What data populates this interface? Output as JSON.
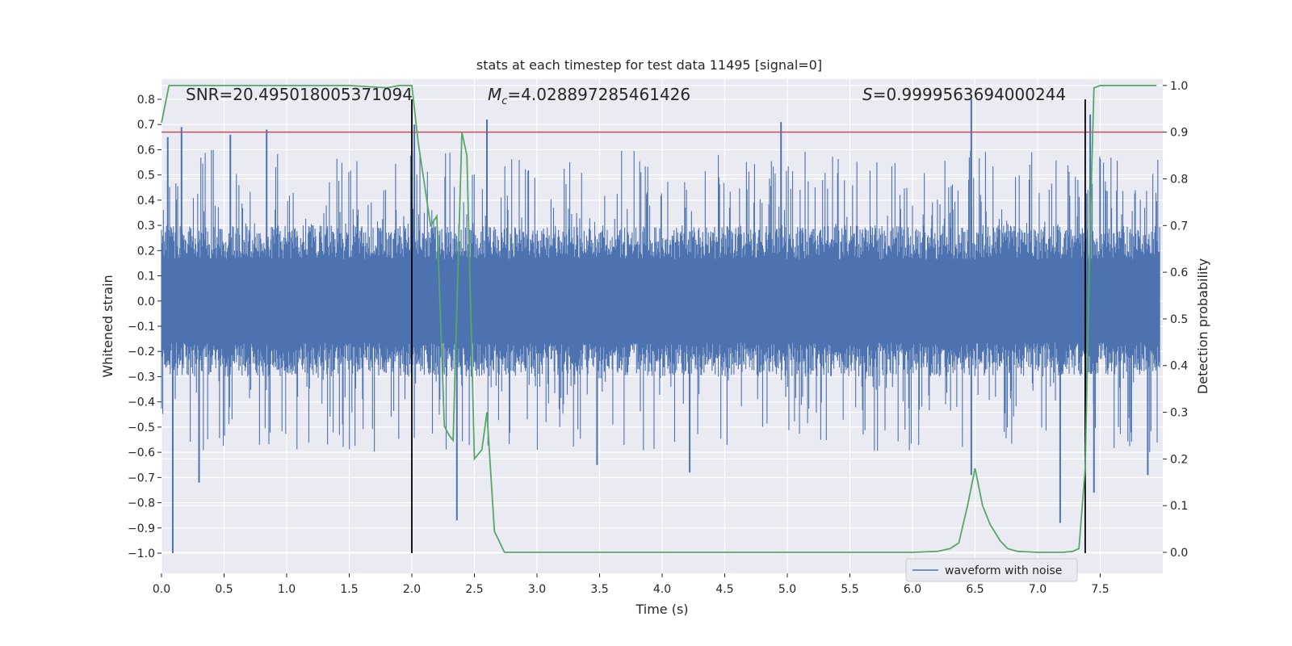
{
  "chart_data": {
    "type": "line",
    "title": "stats at each timestep for test data 11495 [signal=0]",
    "xlabel": "Time (s)",
    "ylabel": "Whitened strain",
    "y2label": "Detection probability",
    "xlim": [
      0.0,
      8.0
    ],
    "ylim": [
      -1.08,
      0.88
    ],
    "y2lim": [
      -0.045,
      1.0136
    ],
    "xticks": [
      "0.0",
      "0.5",
      "1.0",
      "1.5",
      "2.0",
      "2.5",
      "3.0",
      "3.5",
      "4.0",
      "4.5",
      "5.0",
      "5.5",
      "6.0",
      "6.5",
      "7.0",
      "7.5"
    ],
    "yticks": [
      "0.8",
      "0.7",
      "0.6",
      "0.5",
      "0.4",
      "0.3",
      "0.2",
      "0.1",
      "0.0",
      "−0.1",
      "−0.2",
      "−0.3",
      "−0.4",
      "−0.5",
      "−0.6",
      "−0.7",
      "−0.8",
      "−0.9",
      "−1.0"
    ],
    "y2ticks": [
      "1.0",
      "0.9",
      "0.8",
      "0.7",
      "0.6",
      "0.5",
      "0.4",
      "0.3",
      "0.2",
      "0.1",
      "0.0"
    ],
    "annotations": {
      "snr": "SNR=20.495018005371094",
      "mc_symbol": "M",
      "mc_sub": "c",
      "mc_value": "=4.028897285461426",
      "s_symbol": "S",
      "s_value": "=0.9999563694000244"
    },
    "legend": {
      "label": "waveform with noise",
      "location": "lower-right"
    },
    "colors": {
      "waveform": "#4c72b0",
      "probability": "#55a868",
      "threshold": "#c44e52",
      "marker": "#000000",
      "plot_bg": "#eaeaf2",
      "grid": "#ffffff"
    },
    "threshold_line": 0.9,
    "vertical_markers": [
      2.0,
      7.38
    ],
    "waveform_envelope": {
      "typical_max": 0.3,
      "typical_min": -0.3,
      "spikes": [
        {
          "x": 0.05,
          "y": 0.65
        },
        {
          "x": 0.09,
          "y": -1.0
        },
        {
          "x": 0.16,
          "y": 0.69
        },
        {
          "x": 0.3,
          "y": -0.72
        },
        {
          "x": 0.55,
          "y": 0.66
        },
        {
          "x": 0.84,
          "y": 0.68
        },
        {
          "x": 2.02,
          "y": 0.7
        },
        {
          "x": 2.36,
          "y": -0.87
        },
        {
          "x": 2.6,
          "y": 0.72
        },
        {
          "x": 3.48,
          "y": -0.65
        },
        {
          "x": 4.22,
          "y": -0.68
        },
        {
          "x": 4.95,
          "y": 0.71
        },
        {
          "x": 6.47,
          "y": 0.8
        },
        {
          "x": 6.47,
          "y": -0.69
        },
        {
          "x": 7.18,
          "y": -0.88
        },
        {
          "x": 7.42,
          "y": 0.74
        },
        {
          "x": 7.45,
          "y": -0.76
        },
        {
          "x": 7.88,
          "y": -0.69
        }
      ]
    },
    "probability_series": {
      "name": "Detection probability",
      "x": [
        0.0,
        0.06,
        0.1,
        0.5,
        1.0,
        1.5,
        1.8,
        1.9,
        2.0,
        2.05,
        2.15,
        2.2,
        2.26,
        2.3,
        2.33,
        2.4,
        2.44,
        2.5,
        2.56,
        2.6,
        2.66,
        2.74,
        2.84,
        3.0,
        3.5,
        4.0,
        4.5,
        5.0,
        5.5,
        6.0,
        6.2,
        6.3,
        6.37,
        6.44,
        6.5,
        6.56,
        6.62,
        6.7,
        6.76,
        6.84,
        7.0,
        7.2,
        7.28,
        7.33,
        7.38,
        7.42,
        7.45,
        7.5,
        7.6,
        7.95
      ],
      "values": [
        0.92,
        1.0,
        1.0,
        1.0,
        1.0,
        1.0,
        0.995,
        1.0,
        1.0,
        0.88,
        0.7,
        0.72,
        0.27,
        0.25,
        0.24,
        0.9,
        0.85,
        0.2,
        0.22,
        0.3,
        0.045,
        0.0,
        0.0,
        0.0,
        0.0,
        0.0,
        0.0,
        0.0,
        0.0,
        0.0,
        0.002,
        0.008,
        0.02,
        0.1,
        0.18,
        0.1,
        0.06,
        0.025,
        0.008,
        0.002,
        0.0,
        0.0,
        0.002,
        0.008,
        0.18,
        0.7,
        0.995,
        1.0,
        1.0,
        1.0
      ]
    }
  }
}
